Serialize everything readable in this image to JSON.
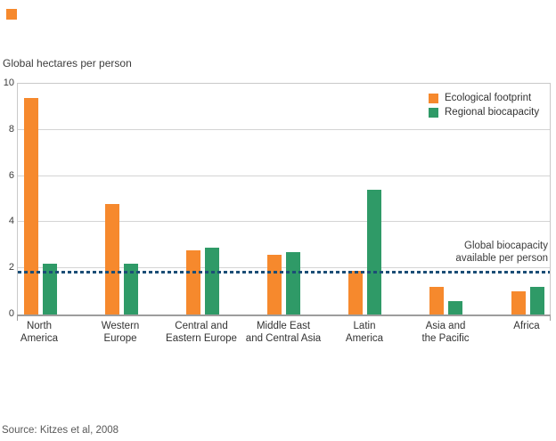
{
  "page": {
    "title": "Global hectares per person",
    "source": "Source: Kitzes et al, 2008"
  },
  "legend": {
    "items": [
      {
        "label": "Ecological footprint",
        "color": "#F6892D"
      },
      {
        "label": "Regional biocapacity",
        "color": "#2F9A67"
      }
    ]
  },
  "annotation": {
    "line1": "Global biocapacity",
    "line2": "available per person"
  },
  "colors": {
    "footprint_orange": "#F6892D",
    "biocapacity_green": "#2F9A67",
    "reference_navy": "#1C4E76",
    "gridline_gray": "#d4d4d4",
    "axis_gray": "#9d9d9d",
    "corner_accent": "#F6892D"
  },
  "chart_data": {
    "type": "bar",
    "title": "Global hectares per person",
    "categories": [
      "North America",
      "Western Europe",
      "Central and Eastern Europe",
      "Middle East and Central Asia",
      "Latin America",
      "Asia and the Pacific",
      "Africa"
    ],
    "category_label_lines": [
      [
        "North",
        "America"
      ],
      [
        "Western",
        "Europe"
      ],
      [
        "Central and",
        "Eastern Europe"
      ],
      [
        "Middle East",
        "and Central Asia"
      ],
      [
        "Latin",
        "America"
      ],
      [
        "Asia and",
        "the Pacific"
      ],
      [
        "Africa"
      ]
    ],
    "series": [
      {
        "name": "Ecological footprint",
        "color": "#F6892D",
        "values": [
          9.4,
          4.8,
          2.8,
          2.6,
          1.9,
          1.2,
          1.0
        ]
      },
      {
        "name": "Regional biocapacity",
        "color": "#2F9A67",
        "values": [
          2.2,
          2.2,
          2.9,
          2.7,
          5.4,
          0.6,
          1.2
        ]
      }
    ],
    "xlabel": "",
    "ylabel": "Global hectares per person",
    "ylim": [
      0,
      10
    ],
    "y_ticks": [
      0,
      2,
      4,
      6,
      8,
      10
    ],
    "grid": true,
    "legend_position": "top-right-inside",
    "reference_line": {
      "value": 1.8,
      "label": "Global biocapacity available per person",
      "color": "#1C4E76",
      "style": "dashed"
    }
  }
}
